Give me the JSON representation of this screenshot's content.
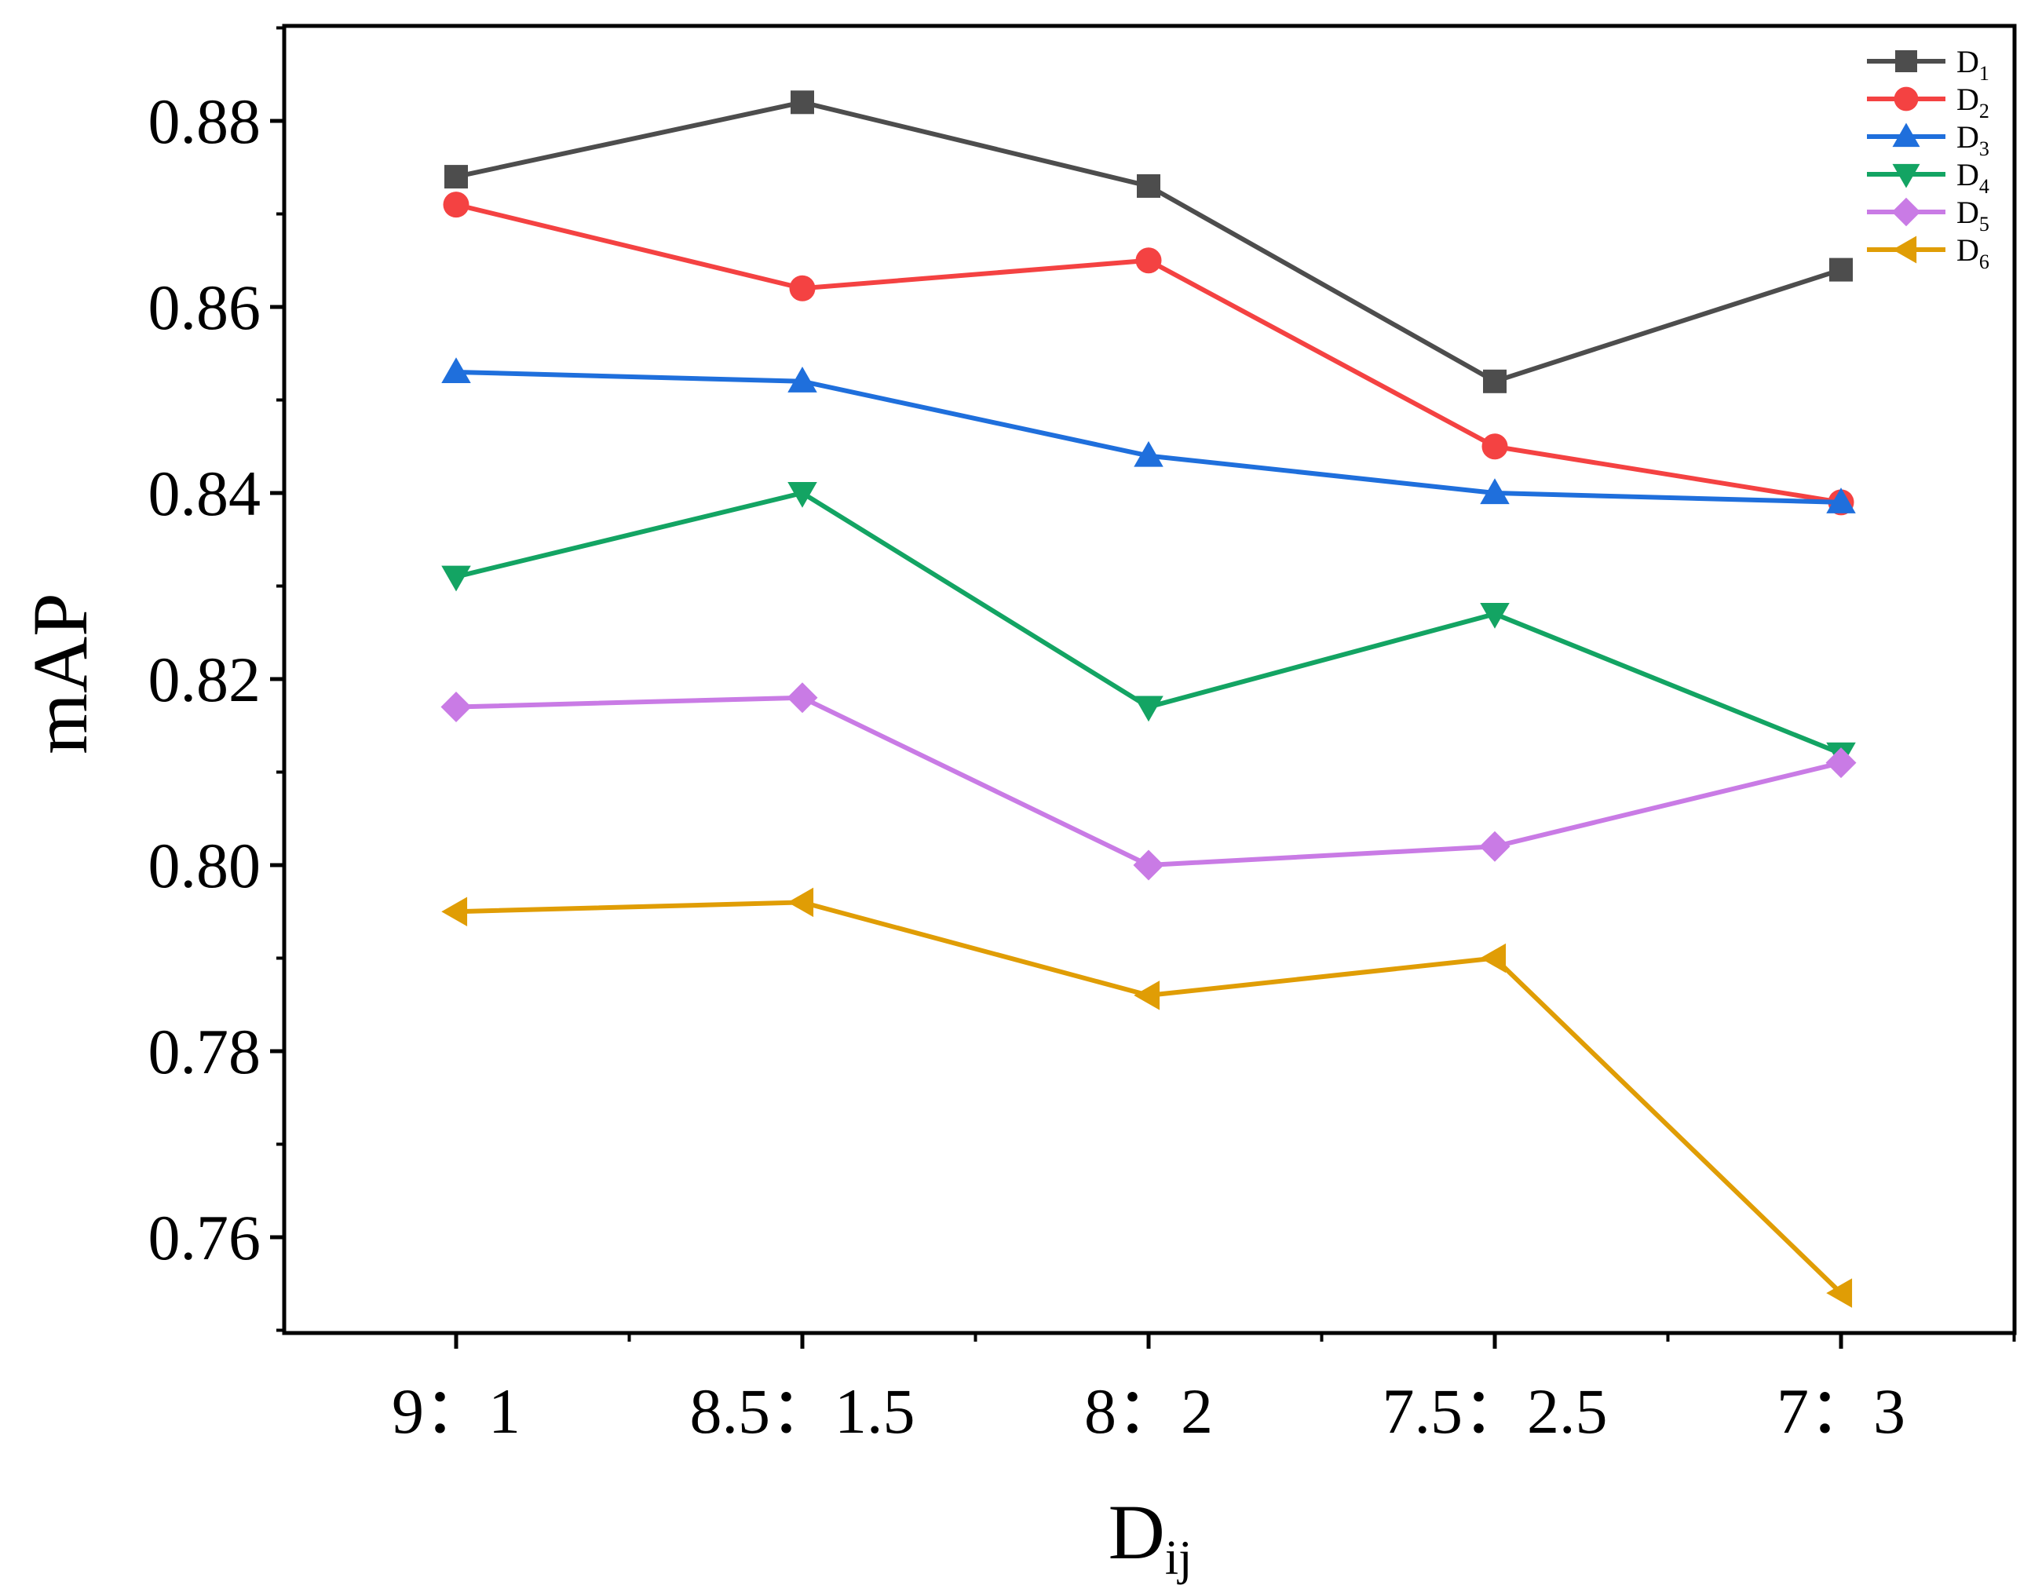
{
  "chart_data": {
    "type": "line",
    "title": "",
    "xlabel": "D",
    "xlabel_subscript": "ij",
    "ylabel": "mAP",
    "categories": [
      "9：1",
      "8.5：1.5",
      "8：2",
      "7.5：2.5",
      "7：3"
    ],
    "ylim": [
      0.75,
      0.89
    ],
    "yticks": [
      "0.76",
      "0.78",
      "0.80",
      "0.82",
      "0.84",
      "0.86",
      "0.88"
    ],
    "legend_position": "top-right",
    "series": [
      {
        "name": "D",
        "subscript": "1",
        "color": "#4d4d4d",
        "marker": "square",
        "values": [
          0.874,
          0.882,
          0.873,
          0.852,
          0.864
        ]
      },
      {
        "name": "D",
        "subscript": "2",
        "color": "#f44242",
        "marker": "circle",
        "values": [
          0.871,
          0.862,
          0.865,
          0.845,
          0.839
        ]
      },
      {
        "name": "D",
        "subscript": "3",
        "color": "#1f6fdc",
        "marker": "triangle-up",
        "values": [
          0.853,
          0.852,
          0.844,
          0.84,
          0.839
        ]
      },
      {
        "name": "D",
        "subscript": "4",
        "color": "#13a463",
        "marker": "triangle-down",
        "values": [
          0.831,
          0.84,
          0.817,
          0.827,
          0.812
        ]
      },
      {
        "name": "D",
        "subscript": "5",
        "color": "#c97be5",
        "marker": "diamond",
        "values": [
          0.817,
          0.818,
          0.8,
          0.802,
          0.811
        ]
      },
      {
        "name": "D",
        "subscript": "6",
        "color": "#e09d05",
        "marker": "triangle-left",
        "values": [
          0.795,
          0.796,
          0.786,
          0.79,
          0.754
        ]
      }
    ]
  }
}
